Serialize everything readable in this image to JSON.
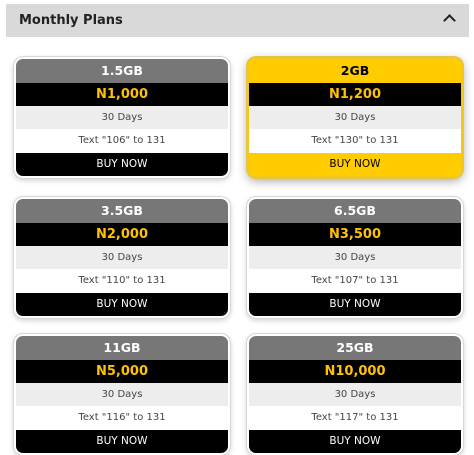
{
  "section": {
    "title": "Monthly Plans"
  },
  "plans": [
    {
      "size": "1.5GB",
      "price": "N1,000",
      "validity": "30 Days",
      "instruction": "Text \"106\" to 131",
      "buy_label": "BUY NOW"
    },
    {
      "size": "2GB",
      "price": "N1,200",
      "validity": "30 Days",
      "instruction": "Text \"130\" to 131",
      "buy_label": "BUY NOW"
    },
    {
      "size": "3.5GB",
      "price": "N2,000",
      "validity": "30 Days",
      "instruction": "Text \"110\" to 131",
      "buy_label": "BUY NOW"
    },
    {
      "size": "6.5GB",
      "price": "N3,500",
      "validity": "30 Days",
      "instruction": "Text \"107\" to 131",
      "buy_label": "BUY NOW"
    },
    {
      "size": "11GB",
      "price": "N5,000",
      "validity": "30 Days",
      "instruction": "Text \"116\" to 131",
      "buy_label": "BUY NOW"
    },
    {
      "size": "25GB",
      "price": "N10,000",
      "validity": "30 Days",
      "instruction": "Text \"117\" to 131",
      "buy_label": "BUY NOW"
    }
  ],
  "icons": {
    "collapse": "chevron-up-icon"
  },
  "colors": {
    "accent": "#ffcc00",
    "price_text": "#ffc107",
    "header_bg": "#d9d9d9",
    "size_bar": "#777777"
  }
}
